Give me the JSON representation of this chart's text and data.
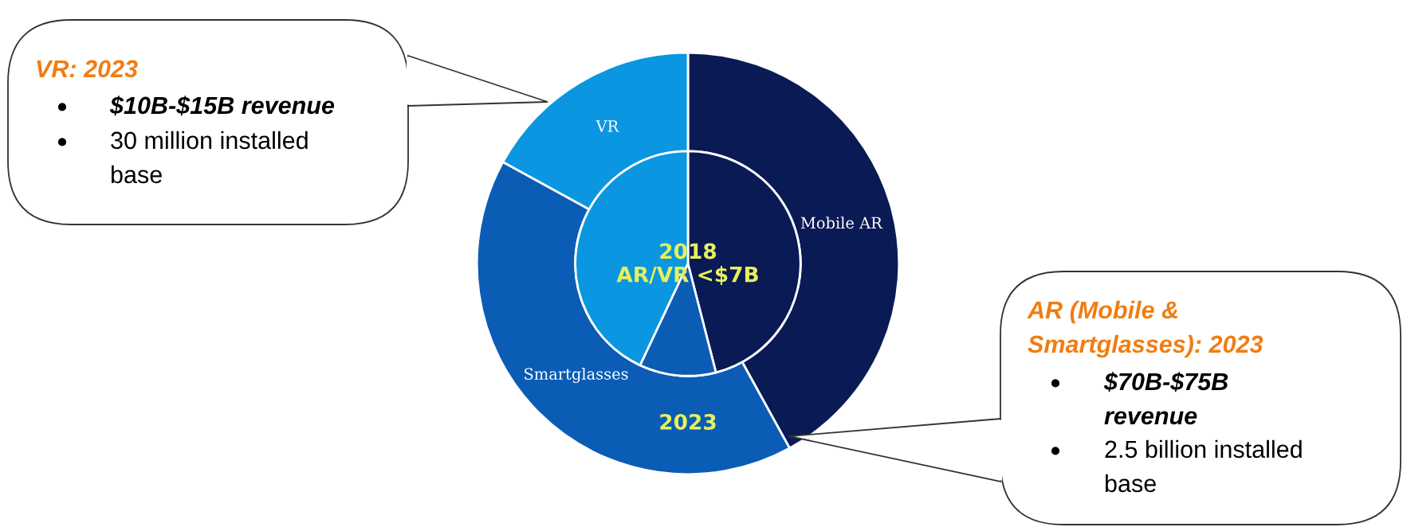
{
  "chart_data": {
    "type": "donut",
    "subtitle": "AR/VR <$7B",
    "categories": [
      "Mobile AR",
      "Smartglasses",
      "VR"
    ],
    "series": [
      {
        "name": "2023",
        "values": [
          42,
          41,
          17
        ],
        "colors": [
          "#0a1a55",
          "#0b5cb5",
          "#0a96e0"
        ]
      },
      {
        "name": "2018",
        "type": "pie",
        "values": [
          46,
          11,
          43
        ],
        "colors": [
          "#0a1a55",
          "#0b5cb5",
          "#0a96e0"
        ]
      }
    ],
    "annotations": [
      "VR: 2023",
      "● $10B-$15B revenue",
      "● 30 million installed\nbase",
      "AR (Mobile &\nSmartglasses): 2023",
      "● $70B-$75B\nrevenue",
      "● 2.5 billion installed\nbase"
    ]
  }
}
